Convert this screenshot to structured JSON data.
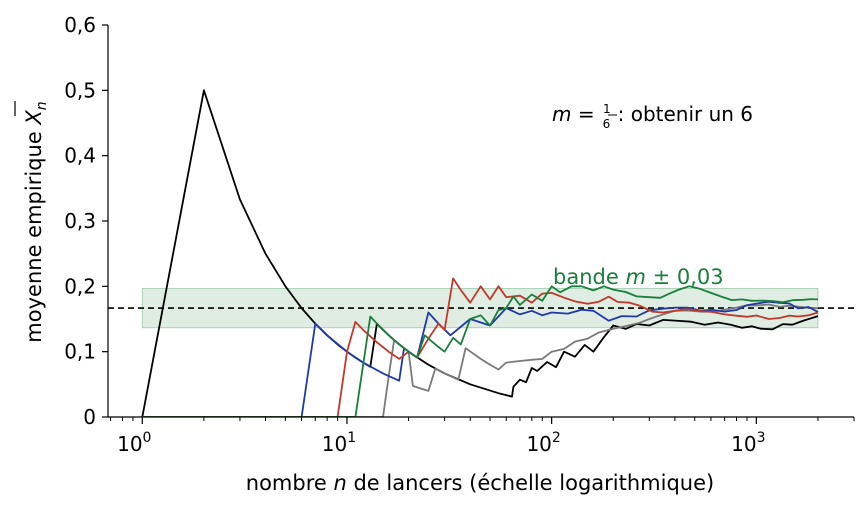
{
  "chart_data": {
    "type": "line",
    "xlabel_pre": "nombre ",
    "xlabel_var": "n",
    "xlabel_post": " de lancers (échelle logarithmique)",
    "ylabel_pre": "moyenne empirique ",
    "ylabel_var": "X",
    "ylabel_sub": "n",
    "xscale": "log",
    "xlim": [
      0.68,
      3000
    ],
    "ylim": [
      0,
      0.6
    ],
    "xticks": [
      {
        "value": 1,
        "base": "10",
        "exp": "0"
      },
      {
        "value": 10,
        "base": "10",
        "exp": "1"
      },
      {
        "value": 100,
        "base": "10",
        "exp": "2"
      },
      {
        "value": 1000,
        "base": "10",
        "exp": "3"
      }
    ],
    "yticks": [
      {
        "value": 0,
        "label": "0"
      },
      {
        "value": 0.1,
        "label": "0,1"
      },
      {
        "value": 0.2,
        "label": "0,2"
      },
      {
        "value": 0.3,
        "label": "0,3"
      },
      {
        "value": 0.4,
        "label": "0,4"
      },
      {
        "value": 0.5,
        "label": "0,5"
      },
      {
        "value": 0.6,
        "label": "0,6"
      }
    ],
    "reference_line": {
      "y": 0.16667,
      "style": "dashed",
      "color": "#000000"
    },
    "band": {
      "y0": 0.13667,
      "y1": 0.19667,
      "x0": 1,
      "x1": 2000,
      "color": "#1a7f3c"
    },
    "band_label": {
      "pre": "bande ",
      "var": "m",
      "post": " ± 0,03",
      "color": "#1a7f3c"
    },
    "formula": {
      "var": "m",
      "eq": " = ",
      "num": "1",
      "den": "6",
      "text": " : obtenir un 6"
    },
    "series": [
      {
        "color": "#000000",
        "points": [
          [
            1,
            0
          ],
          [
            2,
            0.5
          ],
          [
            3,
            0.333
          ],
          [
            4,
            0.25
          ],
          [
            5,
            0.2
          ],
          [
            6,
            0.1667
          ],
          [
            7,
            0.1429
          ],
          [
            8,
            0.125
          ],
          [
            9,
            0.111
          ],
          [
            10,
            0.1
          ],
          [
            11,
            0.0909
          ],
          [
            12,
            0.0833
          ],
          [
            13,
            0.0769
          ],
          [
            14,
            0.1429
          ],
          [
            15,
            0.1333
          ],
          [
            17,
            0.1176
          ],
          [
            20,
            0.1
          ],
          [
            25,
            0.08
          ],
          [
            30,
            0.0667
          ],
          [
            40,
            0.05
          ],
          [
            55,
            0.0364
          ],
          [
            64,
            0.0313
          ],
          [
            65,
            0.0462
          ],
          [
            70,
            0.0571
          ],
          [
            75,
            0.0533
          ],
          [
            80,
            0.075
          ],
          [
            85,
            0.0706
          ],
          [
            95,
            0.0842
          ],
          [
            105,
            0.0762
          ],
          [
            115,
            0.1
          ],
          [
            130,
            0.0923
          ],
          [
            145,
            0.1103
          ],
          [
            160,
            0.1
          ],
          [
            180,
            0.1222
          ],
          [
            200,
            0.14
          ],
          [
            230,
            0.1348
          ],
          [
            260,
            0.1423
          ],
          [
            300,
            0.14
          ],
          [
            350,
            0.1486
          ],
          [
            400,
            0.1475
          ],
          [
            480,
            0.1458
          ],
          [
            560,
            0.1411
          ],
          [
            650,
            0.1446
          ],
          [
            750,
            0.1413
          ],
          [
            850,
            0.1365
          ],
          [
            950,
            0.1389
          ],
          [
            1050,
            0.1352
          ],
          [
            1200,
            0.1342
          ],
          [
            1350,
            0.1422
          ],
          [
            1500,
            0.1413
          ],
          [
            1700,
            0.1476
          ],
          [
            1850,
            0.151
          ],
          [
            2000,
            0.1545
          ]
        ]
      },
      {
        "color": "#7a7a7a",
        "points": [
          [
            1,
            0
          ],
          [
            15,
            0
          ],
          [
            16,
            0.0625
          ],
          [
            17,
            0.1176
          ],
          [
            18,
            0.1111
          ],
          [
            20,
            0.1
          ],
          [
            21,
            0.0476
          ],
          [
            23,
            0.0435
          ],
          [
            25,
            0.04
          ],
          [
            27,
            0.0741
          ],
          [
            30,
            0.0667
          ],
          [
            35,
            0.0571
          ],
          [
            38,
            0.1053
          ],
          [
            45,
            0.0889
          ],
          [
            50,
            0.08
          ],
          [
            55,
            0.0727
          ],
          [
            60,
            0.0833
          ],
          [
            70,
            0.0857
          ],
          [
            80,
            0.0875
          ],
          [
            90,
            0.0889
          ],
          [
            100,
            0.1
          ],
          [
            115,
            0.1043
          ],
          [
            130,
            0.1154
          ],
          [
            150,
            0.12
          ],
          [
            170,
            0.1294
          ],
          [
            200,
            0.135
          ],
          [
            230,
            0.1391
          ],
          [
            270,
            0.1444
          ],
          [
            300,
            0.15
          ],
          [
            350,
            0.1571
          ],
          [
            400,
            0.1625
          ],
          [
            460,
            0.163
          ],
          [
            540,
            0.1611
          ],
          [
            620,
            0.1613
          ],
          [
            700,
            0.1643
          ],
          [
            800,
            0.1675
          ],
          [
            900,
            0.1711
          ],
          [
            1000,
            0.1706
          ],
          [
            1150,
            0.1722
          ],
          [
            1300,
            0.1685
          ],
          [
            1450,
            0.1703
          ],
          [
            1600,
            0.1688
          ],
          [
            1800,
            0.1672
          ],
          [
            2000,
            0.1665
          ]
        ]
      },
      {
        "color": "#2039a8",
        "points": [
          [
            1,
            0
          ],
          [
            6,
            0
          ],
          [
            7,
            0.1429
          ],
          [
            8,
            0.125
          ],
          [
            10,
            0.1
          ],
          [
            12,
            0.0833
          ],
          [
            15,
            0.0667
          ],
          [
            18,
            0.0556
          ],
          [
            19,
            0.1053
          ],
          [
            22,
            0.0909
          ],
          [
            25,
            0.16
          ],
          [
            28,
            0.1429
          ],
          [
            32,
            0.125
          ],
          [
            40,
            0.15
          ],
          [
            50,
            0.14
          ],
          [
            60,
            0.1667
          ],
          [
            70,
            0.1571
          ],
          [
            80,
            0.1625
          ],
          [
            90,
            0.1556
          ],
          [
            100,
            0.16
          ],
          [
            120,
            0.1583
          ],
          [
            140,
            0.1643
          ],
          [
            160,
            0.1625
          ],
          [
            190,
            0.1474
          ],
          [
            220,
            0.1545
          ],
          [
            260,
            0.1538
          ],
          [
            300,
            0.1633
          ],
          [
            350,
            0.1657
          ],
          [
            400,
            0.1675
          ],
          [
            460,
            0.1674
          ],
          [
            530,
            0.163
          ],
          [
            610,
            0.1639
          ],
          [
            700,
            0.1614
          ],
          [
            800,
            0.1637
          ],
          [
            900,
            0.1711
          ],
          [
            1000,
            0.1736
          ],
          [
            1150,
            0.1765
          ],
          [
            1300,
            0.1746
          ],
          [
            1450,
            0.1738
          ],
          [
            1600,
            0.1663
          ],
          [
            1800,
            0.1683
          ],
          [
            2000,
            0.1605
          ]
        ]
      },
      {
        "color": "#c0392b",
        "points": [
          [
            1,
            0
          ],
          [
            9,
            0
          ],
          [
            10,
            0.1
          ],
          [
            11,
            0.1455
          ],
          [
            12,
            0.1333
          ],
          [
            14,
            0.1143
          ],
          [
            16,
            0.1
          ],
          [
            18,
            0.0889
          ],
          [
            20,
            0.1
          ],
          [
            22,
            0.0909
          ],
          [
            25,
            0.12
          ],
          [
            28,
            0.1429
          ],
          [
            30,
            0.1333
          ],
          [
            33,
            0.2121
          ],
          [
            36,
            0.1944
          ],
          [
            40,
            0.175
          ],
          [
            45,
            0.2
          ],
          [
            50,
            0.18
          ],
          [
            55,
            0.2
          ],
          [
            60,
            0.1833
          ],
          [
            70,
            0.1857
          ],
          [
            80,
            0.175
          ],
          [
            90,
            0.1889
          ],
          [
            100,
            0.19
          ],
          [
            115,
            0.1826
          ],
          [
            130,
            0.1769
          ],
          [
            150,
            0.1733
          ],
          [
            170,
            0.1765
          ],
          [
            190,
            0.1842
          ],
          [
            210,
            0.1762
          ],
          [
            240,
            0.175
          ],
          [
            270,
            0.1704
          ],
          [
            310,
            0.1613
          ],
          [
            350,
            0.16
          ],
          [
            400,
            0.1625
          ],
          [
            460,
            0.1652
          ],
          [
            530,
            0.1623
          ],
          [
            610,
            0.1607
          ],
          [
            700,
            0.1571
          ],
          [
            800,
            0.155
          ],
          [
            900,
            0.1533
          ],
          [
            1000,
            0.1553
          ],
          [
            1150,
            0.15
          ],
          [
            1300,
            0.1515
          ],
          [
            1450,
            0.1552
          ],
          [
            1600,
            0.1538
          ],
          [
            1800,
            0.1556
          ],
          [
            2000,
            0.16
          ]
        ]
      },
      {
        "color": "#1a7f3c",
        "points": [
          [
            1,
            0
          ],
          [
            11,
            0
          ],
          [
            13,
            0.1538
          ],
          [
            14,
            0.1429
          ],
          [
            16,
            0.125
          ],
          [
            18,
            0.1111
          ],
          [
            20,
            0.1
          ],
          [
            22,
            0.0909
          ],
          [
            24,
            0.125
          ],
          [
            26,
            0.1154
          ],
          [
            28,
            0.1071
          ],
          [
            30,
            0.1
          ],
          [
            33,
            0.1212
          ],
          [
            36,
            0.1111
          ],
          [
            40,
            0.15
          ],
          [
            45,
            0.1556
          ],
          [
            50,
            0.14
          ],
          [
            55,
            0.1636
          ],
          [
            60,
            0.1667
          ],
          [
            65,
            0.1846
          ],
          [
            70,
            0.1714
          ],
          [
            80,
            0.1875
          ],
          [
            90,
            0.1778
          ],
          [
            100,
            0.2
          ],
          [
            110,
            0.1909
          ],
          [
            125,
            0.2
          ],
          [
            140,
            0.2
          ],
          [
            160,
            0.1938
          ],
          [
            180,
            0.2
          ],
          [
            200,
            0.195
          ],
          [
            230,
            0.1913
          ],
          [
            260,
            0.1846
          ],
          [
            300,
            0.1833
          ],
          [
            340,
            0.1824
          ],
          [
            380,
            0.1895
          ],
          [
            420,
            0.1952
          ],
          [
            470,
            0.2
          ],
          [
            530,
            0.1962
          ],
          [
            600,
            0.19
          ],
          [
            680,
            0.1838
          ],
          [
            760,
            0.1789
          ],
          [
            850,
            0.18
          ],
          [
            950,
            0.1779
          ],
          [
            1050,
            0.1781
          ],
          [
            1200,
            0.1775
          ],
          [
            1350,
            0.1756
          ],
          [
            1500,
            0.1787
          ],
          [
            1700,
            0.1794
          ],
          [
            1850,
            0.1805
          ],
          [
            2000,
            0.18
          ]
        ]
      }
    ]
  }
}
